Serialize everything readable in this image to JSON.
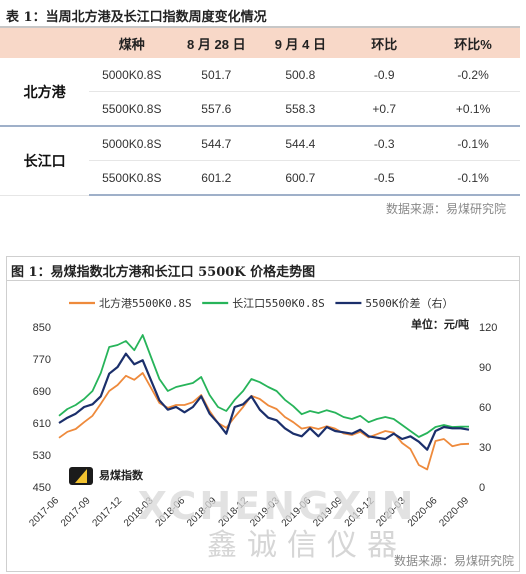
{
  "table": {
    "title": "表 1：当周北方港及长江口指数周度变化情况",
    "headers": [
      "",
      "煤种",
      "8 月 28 日",
      "9 月 4 日",
      "环比",
      "环比%"
    ],
    "groups": [
      {
        "port": "北方港",
        "rows": [
          {
            "coal": "5000K0.8S",
            "aug28": "501.7",
            "sep4": "500.8",
            "chg": "-0.9",
            "chg_pct": "-0.2%",
            "dir": "down"
          },
          {
            "coal": "5500K0.8S",
            "aug28": "557.6",
            "sep4": "558.3",
            "chg": "+0.7",
            "chg_pct": "+0.1%",
            "dir": "up"
          }
        ]
      },
      {
        "port": "长江口",
        "rows": [
          {
            "coal": "5000K0.8S",
            "aug28": "544.7",
            "sep4": "544.4",
            "chg": "-0.3",
            "chg_pct": "-0.1%",
            "dir": "down"
          },
          {
            "coal": "5500K0.8S",
            "aug28": "601.2",
            "sep4": "600.7",
            "chg": "-0.5",
            "chg_pct": "-0.1%",
            "dir": "down"
          }
        ]
      }
    ],
    "source": "数据来源：易煤研究院"
  },
  "figure": {
    "title": "图 1：易煤指数北方港和长江口 5500K 价格走势图",
    "source": "数据来源：易煤研究院",
    "logo_text": "易煤指数",
    "watermark_text": "XCHENGXIN",
    "watermark_sub": "鑫诚信仪器"
  },
  "chart_data": {
    "type": "line",
    "title": "",
    "unit_label": "单位：元/吨",
    "y_left_ticks": [
      450,
      530,
      610,
      690,
      770,
      850
    ],
    "y_right_ticks": [
      0,
      30,
      60,
      90,
      120
    ],
    "ylim_left": [
      450,
      850
    ],
    "ylim_right": [
      0,
      120
    ],
    "x_ticks": [
      "2017-06",
      "2017-09",
      "2017-12",
      "2018-03",
      "2018-06",
      "2018-09",
      "2018-12",
      "2019-03",
      "2019-06",
      "2019-09",
      "2019-12",
      "2020-03",
      "2020-06",
      "2020-09"
    ],
    "legend_position": "top",
    "series": [
      {
        "name": "北方港5500K0.8S",
        "axis": "left",
        "color": "#ee8a3c",
        "values": [
          573,
          588,
          595,
          612,
          628,
          658,
          690,
          705,
          728,
          718,
          735,
          698,
          660,
          648,
          655,
          655,
          662,
          680,
          640,
          610,
          598,
          625,
          650,
          678,
          670,
          654,
          645,
          625,
          612,
          596,
          600,
          595,
          602,
          596,
          584,
          580,
          588,
          574,
          582,
          590,
          586,
          560,
          545,
          505,
          494,
          565,
          570,
          552,
          557,
          558
        ]
      },
      {
        "name": "长江口5500K0.8S",
        "axis": "left",
        "color": "#27b45a",
        "values": [
          628,
          645,
          655,
          670,
          690,
          735,
          800,
          805,
          815,
          792,
          830,
          775,
          720,
          690,
          700,
          705,
          710,
          725,
          680,
          650,
          640,
          668,
          690,
          720,
          712,
          700,
          690,
          668,
          652,
          632,
          640,
          635,
          642,
          636,
          625,
          620,
          628,
          612,
          620,
          625,
          620,
          605,
          590,
          575,
          585,
          600,
          605,
          600,
          601,
          601
        ]
      },
      {
        "name": "5500K价差（右）",
        "axis": "right",
        "color": "#1b2f6b",
        "values": [
          48,
          52,
          55,
          60,
          62,
          68,
          85,
          90,
          100,
          92,
          95,
          80,
          65,
          58,
          60,
          56,
          60,
          68,
          55,
          48,
          40,
          60,
          62,
          68,
          58,
          52,
          50,
          44,
          40,
          38,
          44,
          38,
          45,
          42,
          41,
          40,
          43,
          38,
          37,
          36,
          40,
          36,
          38,
          34,
          28,
          42,
          45,
          44,
          44,
          43
        ]
      }
    ]
  }
}
